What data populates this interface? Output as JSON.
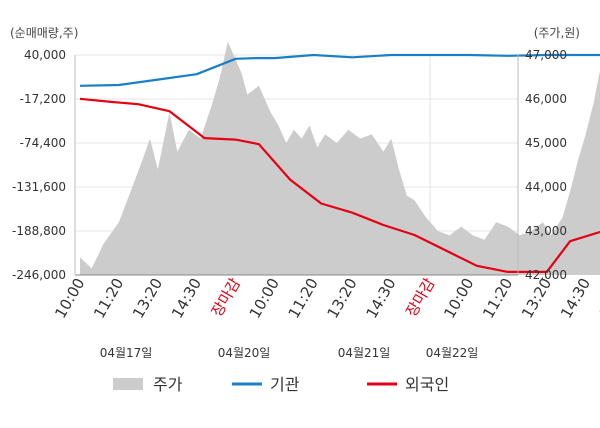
{
  "chart_data": {
    "type": "line",
    "left_unit": "(순매매량,주)",
    "right_unit": "(주가,원)",
    "y_left": {
      "min": -246000,
      "max": 40000,
      "ticks": [
        "40,000",
        "-17,200",
        "-74,400",
        "-131,600",
        "-188,800",
        "-246,000"
      ]
    },
    "y_right": {
      "min": 42000,
      "max": 47000,
      "ticks": [
        "47,000",
        "46,000",
        "45,000",
        "44,000",
        "43,000",
        "42,000"
      ]
    },
    "x_ticks": [
      {
        "label": "10:00",
        "close": false
      },
      {
        "label": "11:20",
        "close": false
      },
      {
        "label": "13:20",
        "close": false
      },
      {
        "label": "14:30",
        "close": false
      },
      {
        "label": "장마감",
        "close": true
      },
      {
        "label": "10:00",
        "close": false
      },
      {
        "label": "11:20",
        "close": false
      },
      {
        "label": "13:20",
        "close": false
      },
      {
        "label": "14:30",
        "close": false
      },
      {
        "label": "장마감",
        "close": true
      },
      {
        "label": "10:00",
        "close": false
      },
      {
        "label": "11:20",
        "close": false
      },
      {
        "label": "13:20",
        "close": false
      },
      {
        "label": "14:30",
        "close": false
      },
      {
        "label": "장마감",
        "close": true
      },
      {
        "label": "10:00",
        "close": false
      },
      {
        "label": "11:20",
        "close": false
      },
      {
        "label": "13:20",
        "close": false
      },
      {
        "label": "14:30",
        "close": false
      }
    ],
    "dates": [
      "04월17일",
      "04월20일",
      "04월21일",
      "04월22일"
    ],
    "legend": [
      "주가",
      "기관",
      "외국인"
    ],
    "colors": {
      "price": "#cccccc",
      "institution": "#1a7fc6",
      "foreign": "#e60012",
      "close_label": "#e60012"
    },
    "price_series": [
      [
        0.0,
        42400
      ],
      [
        0.3,
        42150
      ],
      [
        0.6,
        42700
      ],
      [
        1.0,
        43200
      ],
      [
        1.3,
        43900
      ],
      [
        1.6,
        44600
      ],
      [
        1.8,
        45100
      ],
      [
        2.0,
        44400
      ],
      [
        2.3,
        45700
      ],
      [
        2.5,
        44800
      ],
      [
        2.8,
        45300
      ],
      [
        3.1,
        45100
      ],
      [
        3.4,
        45900
      ],
      [
        3.6,
        46500
      ],
      [
        3.8,
        47300
      ],
      [
        4.0,
        46900
      ],
      [
        4.15,
        46600
      ],
      [
        4.3,
        46100
      ],
      [
        4.6,
        46300
      ],
      [
        4.9,
        45700
      ],
      [
        5.1,
        45400
      ],
      [
        5.3,
        45000
      ],
      [
        5.5,
        45300
      ],
      [
        5.7,
        45100
      ],
      [
        5.9,
        45400
      ],
      [
        6.1,
        44900
      ],
      [
        6.3,
        45200
      ],
      [
        6.6,
        45000
      ],
      [
        6.9,
        45300
      ],
      [
        7.2,
        45100
      ],
      [
        7.5,
        45200
      ],
      [
        7.8,
        44800
      ],
      [
        8.0,
        45100
      ],
      [
        8.2,
        44400
      ],
      [
        8.4,
        43800
      ],
      [
        8.6,
        43700
      ],
      [
        8.9,
        43300
      ],
      [
        9.2,
        43000
      ],
      [
        9.5,
        42900
      ],
      [
        9.8,
        43100
      ],
      [
        10.1,
        42900
      ],
      [
        10.4,
        42800
      ],
      [
        10.7,
        43200
      ],
      [
        11.0,
        43100
      ],
      [
        11.3,
        42900
      ],
      [
        11.6,
        43000
      ],
      [
        11.9,
        43200
      ],
      [
        12.1,
        42900
      ],
      [
        12.4,
        43300
      ],
      [
        12.6,
        43900
      ],
      [
        12.8,
        44600
      ],
      [
        13.0,
        45200
      ],
      [
        13.2,
        45900
      ],
      [
        13.4,
        46800
      ],
      [
        13.5,
        47100
      ]
    ],
    "institution_series": [
      [
        0.0,
        0
      ],
      [
        1.0,
        1000
      ],
      [
        2.0,
        8000
      ],
      [
        3.0,
        15000
      ],
      [
        4.0,
        35000
      ],
      [
        4.5,
        36000
      ],
      [
        5.0,
        36000
      ],
      [
        6.0,
        40000
      ],
      [
        7.0,
        37000
      ],
      [
        8.0,
        40000
      ],
      [
        9.0,
        40000
      ],
      [
        10.0,
        40000
      ],
      [
        11.0,
        39000
      ],
      [
        12.0,
        40000
      ],
      [
        13.5,
        40000
      ]
    ],
    "foreign_series": [
      [
        0.0,
        -17000
      ],
      [
        0.8,
        -21000
      ],
      [
        1.5,
        -24000
      ],
      [
        2.3,
        -33000
      ],
      [
        3.2,
        -68000
      ],
      [
        4.0,
        -70000
      ],
      [
        4.6,
        -76000
      ],
      [
        5.4,
        -122000
      ],
      [
        6.2,
        -153000
      ],
      [
        7.0,
        -165000
      ],
      [
        7.8,
        -181000
      ],
      [
        8.6,
        -194000
      ],
      [
        9.4,
        -214000
      ],
      [
        10.2,
        -234000
      ],
      [
        11.0,
        -242000
      ],
      [
        12.0,
        -242000
      ],
      [
        12.6,
        -202000
      ],
      [
        13.5,
        -188000
      ]
    ]
  }
}
